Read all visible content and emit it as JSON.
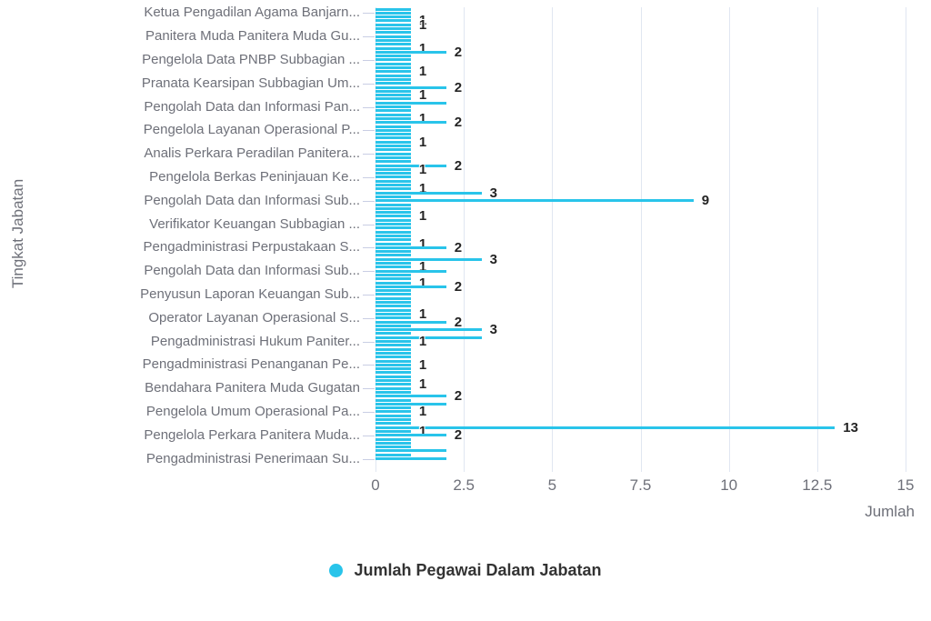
{
  "colors": {
    "bar": "#29C4EA",
    "axis_label": "#6E7079",
    "value_label": "#242424",
    "gridline": "#E0E6F1",
    "tick": "#C9CEE4",
    "legend_text": "#333333",
    "background": "#FFFFFF"
  },
  "chart_data": {
    "type": "bar",
    "orientation": "horizontal",
    "series_name": "Jumlah Pegawai Dalam Jabatan",
    "xlabel": "Jumlah",
    "ylabel": "Tingkat Jabatan",
    "xlim": [
      0,
      15
    ],
    "x_ticks": [
      {
        "value": 0,
        "label": "0"
      },
      {
        "value": 2.5,
        "label": "2.5"
      },
      {
        "value": 5,
        "label": "5"
      },
      {
        "value": 7.5,
        "label": "7.5"
      },
      {
        "value": 10,
        "label": "10"
      },
      {
        "value": 12.5,
        "label": "12.5"
      },
      {
        "value": 15,
        "label": "15"
      }
    ],
    "grid": "vertical-lines",
    "legend_position": "bottom-center",
    "bar_color": "#29C4EA",
    "num_bars": 116,
    "values": [
      1,
      1,
      1,
      1,
      1,
      1,
      1,
      1,
      1,
      1,
      1,
      2,
      1,
      1,
      1,
      1,
      1,
      1,
      1,
      1,
      2,
      1,
      1,
      1,
      2,
      1,
      1,
      1,
      1,
      2,
      1,
      1,
      1,
      1,
      1,
      1,
      1,
      1,
      1,
      1,
      2,
      1,
      1,
      1,
      1,
      1,
      1,
      3,
      1,
      9,
      1,
      1,
      1,
      1,
      1,
      1,
      1,
      1,
      1,
      1,
      1,
      2,
      1,
      1,
      3,
      1,
      1,
      2,
      1,
      1,
      1,
      2,
      1,
      1,
      1,
      1,
      1,
      1,
      1,
      1,
      2,
      1,
      3,
      1,
      3,
      1,
      1,
      1,
      1,
      1,
      1,
      1,
      1,
      1,
      1,
      1,
      1,
      1,
      1,
      2,
      1,
      2,
      1,
      1,
      1,
      1,
      1,
      13,
      1,
      2,
      1,
      1,
      1,
      2,
      1,
      2
    ],
    "value_label_indices": [
      3,
      4,
      10,
      11,
      16,
      20,
      22,
      28,
      29,
      34,
      40,
      41,
      46,
      47,
      49,
      53,
      60,
      61,
      64,
      66,
      70,
      71,
      78,
      80,
      82,
      85,
      91,
      96,
      99,
      103,
      107,
      108,
      109
    ],
    "category_label_start_index": 1,
    "category_label_interval": 6,
    "visible_category_labels": [
      "Ketua Pengadilan Agama Banjarn...",
      "Panitera Muda Panitera Muda Gu...",
      "Pengelola Data PNBP Subbagian ...",
      "Pranata Kearsipan Subbagian Um...",
      "Pengolah Data dan Informasi Pan...",
      "Pengelola Layanan Operasional P...",
      "Analis Perkara Peradilan Panitera...",
      "Pengelola Berkas Peninjauan Ke...",
      "Pengolah Data dan Informasi Sub...",
      "Verifikator Keuangan Subbagian ...",
      "Pengadministrasi Perpustakaan S...",
      "Pengolah Data dan Informasi Sub...",
      "Penyusun Laporan Keuangan Sub...",
      "Operator Layanan Operasional S...",
      "Pengadministrasi Hukum Paniter...",
      "Pengadministrasi Penanganan Pe...",
      "Bendahara Panitera Muda Gugatan",
      "Pengelola Umum Operasional Pa...",
      "Pengelola Perkara Panitera Muda...",
      "Pengadministrasi Penerimaan Su..."
    ]
  }
}
